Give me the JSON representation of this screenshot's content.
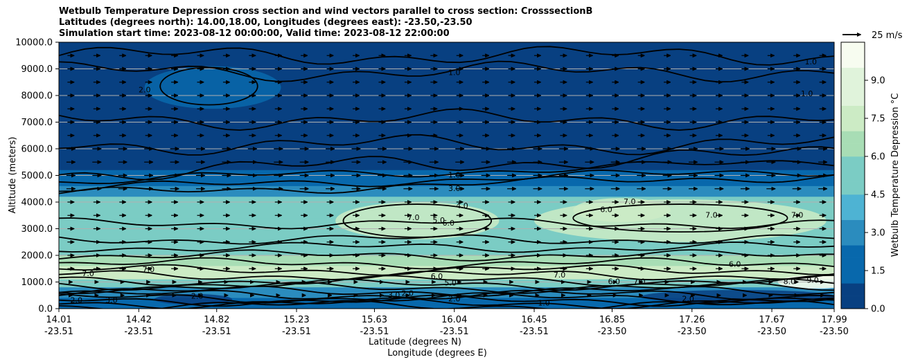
{
  "chart_data": {
    "type": "contour",
    "title": [
      "Wetbulb Temperature Depression cross section and wind vectors parallel to cross section: CrosssectionB",
      "Latitudes (degrees north): 14.00,18.00, Longitudes (degrees east): -23.50,-23.50",
      "Simulation start time: 2023-08-12 00:00:00, Valid time: 2023-08-12 22:00:00"
    ],
    "xlabel_lat": "Latitude (degrees N)",
    "xlabel_lon": "Longitude (degrees E)",
    "ylabel": "Altitude (meters)",
    "xlim": [
      14.01,
      17.99
    ],
    "ylim": [
      0,
      10000
    ],
    "x_ticks": [
      {
        "lat": "14.01",
        "lon": "-23.51",
        "pos": 14.01
      },
      {
        "lat": "14.42",
        "lon": "-23.51",
        "pos": 14.42
      },
      {
        "lat": "14.82",
        "lon": "-23.51",
        "pos": 14.82
      },
      {
        "lat": "15.23",
        "lon": "-23.51",
        "pos": 15.23
      },
      {
        "lat": "15.63",
        "lon": "-23.51",
        "pos": 15.63
      },
      {
        "lat": "16.04",
        "lon": "-23.51",
        "pos": 16.04
      },
      {
        "lat": "16.45",
        "lon": "-23.51",
        "pos": 16.45
      },
      {
        "lat": "16.85",
        "lon": "-23.50",
        "pos": 16.85
      },
      {
        "lat": "17.26",
        "lon": "-23.50",
        "pos": 17.26
      },
      {
        "lat": "17.67",
        "lon": "-23.50",
        "pos": 17.67
      },
      {
        "lat": "17.99",
        "lon": "-23.50",
        "pos": 17.99
      }
    ],
    "y_ticks": [
      {
        "label": "0.0",
        "value": 0
      },
      {
        "label": "1000.0",
        "value": 1000
      },
      {
        "label": "2000.0",
        "value": 2000
      },
      {
        "label": "3000.0",
        "value": 3000
      },
      {
        "label": "4000.0",
        "value": 4000
      },
      {
        "label": "5000.0",
        "value": 5000
      },
      {
        "label": "6000.0",
        "value": 6000
      },
      {
        "label": "7000.0",
        "value": 7000
      },
      {
        "label": "8000.0",
        "value": 8000
      },
      {
        "label": "9000.0",
        "value": 9000
      },
      {
        "label": "10000.0",
        "value": 10000
      }
    ],
    "grid_y": true,
    "colorbar": {
      "label": "Wetbulb Temperature Depression $^\\circ$C",
      "label_text": "Wetbulb Temperature Depression °C",
      "range": [
        0,
        10.5
      ],
      "levels": 21,
      "ticks": [
        "0.0",
        "1.5",
        "3.0",
        "4.5",
        "6.0",
        "7.5",
        "9.0"
      ],
      "tick_values": [
        0,
        1.5,
        3.0,
        4.5,
        6.0,
        7.5,
        9.0
      ],
      "colormap": "GnBu_r",
      "colors": [
        "#084081",
        "#0868ac",
        "#2b8cbe",
        "#4eb3d3",
        "#7bccc4",
        "#a8ddb5",
        "#ccebc5",
        "#e0f3db",
        "#f7fcf0"
      ]
    },
    "wind_reference": {
      "label": "25 m/s",
      "value": 25
    },
    "wind_direction": "southward-to-northward parallel to section (arrows point right)",
    "bands": [
      {
        "alt_top": 10000,
        "alt_bottom": 6100,
        "value": 0.8
      },
      {
        "alt_top": 6100,
        "alt_bottom": 4600,
        "value": 0.4
      },
      {
        "alt_top": 4600,
        "alt_bottom": 2000,
        "value": 5.5
      },
      {
        "alt_top": 2000,
        "alt_bottom": 1000,
        "value": 7.5
      },
      {
        "alt_top": 1000,
        "alt_bottom": 0,
        "value": 2.0
      }
    ],
    "contour_labels": [
      {
        "text": "1.0",
        "x": 16.04,
        "y": 8850
      },
      {
        "text": "1.0",
        "x": 17.87,
        "y": 9250
      },
      {
        "text": "1.0",
        "x": 17.85,
        "y": 8050
      },
      {
        "text": "2.0",
        "x": 14.45,
        "y": 8200
      },
      {
        "text": "1.0",
        "x": 16.04,
        "y": 5000
      },
      {
        "text": "3.0",
        "x": 16.04,
        "y": 4500
      },
      {
        "text": "4.0",
        "x": 16.08,
        "y": 3850
      },
      {
        "text": "5.0",
        "x": 15.96,
        "y": 3300
      },
      {
        "text": "6.0",
        "x": 16.01,
        "y": 3200
      },
      {
        "text": "7.0",
        "x": 15.83,
        "y": 3400
      },
      {
        "text": "7.0",
        "x": 16.94,
        "y": 4000
      },
      {
        "text": "6.0",
        "x": 16.82,
        "y": 3700
      },
      {
        "text": "7.0",
        "x": 17.36,
        "y": 3500
      },
      {
        "text": "7.0",
        "x": 17.8,
        "y": 3500
      },
      {
        "text": "6.0",
        "x": 17.48,
        "y": 1650
      },
      {
        "text": "7.0",
        "x": 14.47,
        "y": 1450
      },
      {
        "text": "7.0",
        "x": 14.16,
        "y": 1300
      },
      {
        "text": "6.0",
        "x": 15.95,
        "y": 1200
      },
      {
        "text": "7.0",
        "x": 16.58,
        "y": 1250
      },
      {
        "text": "6.0",
        "x": 16.86,
        "y": 1000
      },
      {
        "text": "7.0",
        "x": 16.99,
        "y": 1000
      },
      {
        "text": "8.0",
        "x": 17.76,
        "y": 1000
      },
      {
        "text": "9.0",
        "x": 17.88,
        "y": 1050
      },
      {
        "text": "5.0",
        "x": 16.02,
        "y": 950
      },
      {
        "text": "3.0",
        "x": 15.73,
        "y": 500
      },
      {
        "text": "2.0",
        "x": 15.8,
        "y": 560
      },
      {
        "text": "2.0",
        "x": 14.1,
        "y": 300
      },
      {
        "text": "3.0",
        "x": 14.28,
        "y": 300
      },
      {
        "text": "2.0",
        "x": 14.72,
        "y": 450
      },
      {
        "text": "2.0",
        "x": 16.04,
        "y": 350
      },
      {
        "text": "1.0",
        "x": 16.5,
        "y": 200
      },
      {
        "text": "2.0",
        "x": 17.24,
        "y": 350
      }
    ]
  }
}
